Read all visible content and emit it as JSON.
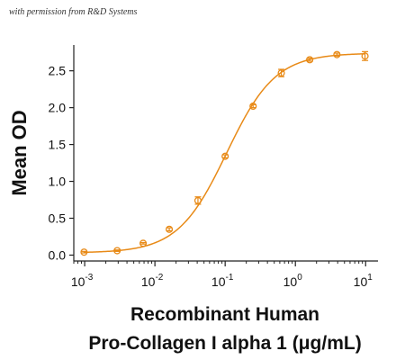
{
  "watermark": "with permission from R&D Systems",
  "chart_data": {
    "type": "scatter",
    "title": "",
    "ylabel": "Mean OD",
    "xlabel_lines": [
      "Recombinant Human",
      "Pro-Collagen I alpha 1 (μg/mL)"
    ],
    "x_scale": "log",
    "xlim": [
      0.0007,
      15
    ],
    "ylim": [
      -0.08,
      2.85
    ],
    "x_ticks": [
      {
        "value": 0.001,
        "base": "10",
        "exp": "-3"
      },
      {
        "value": 0.01,
        "base": "10",
        "exp": "-2"
      },
      {
        "value": 0.1,
        "base": "10",
        "exp": "-1"
      },
      {
        "value": 1,
        "base": "10",
        "exp": "0"
      },
      {
        "value": 10,
        "base": "10",
        "exp": "1"
      }
    ],
    "y_ticks": [
      {
        "value": 0.0,
        "label": "0.0"
      },
      {
        "value": 0.5,
        "label": "0.5"
      },
      {
        "value": 1.0,
        "label": "1.0"
      },
      {
        "value": 1.5,
        "label": "1.5"
      },
      {
        "value": 2.0,
        "label": "2.0"
      },
      {
        "value": 2.5,
        "label": "2.5"
      }
    ],
    "color": "#E88A17",
    "grid": false,
    "series": [
      {
        "x": [
          0.00098,
          0.0029,
          0.0068,
          0.016,
          0.041,
          0.1,
          0.25,
          0.63,
          1.6,
          3.9,
          9.8
        ],
        "y": [
          0.04,
          0.06,
          0.16,
          0.35,
          0.74,
          1.34,
          2.02,
          2.47,
          2.65,
          2.72,
          2.7
        ],
        "yerr": [
          0.01,
          0.01,
          0.01,
          0.02,
          0.05,
          0.02,
          0.02,
          0.05,
          0.02,
          0.02,
          0.06
        ]
      }
    ],
    "fit_curve": {
      "bottom": 0.03,
      "top": 2.74,
      "ec50": 0.105,
      "hill": 1.25
    }
  }
}
